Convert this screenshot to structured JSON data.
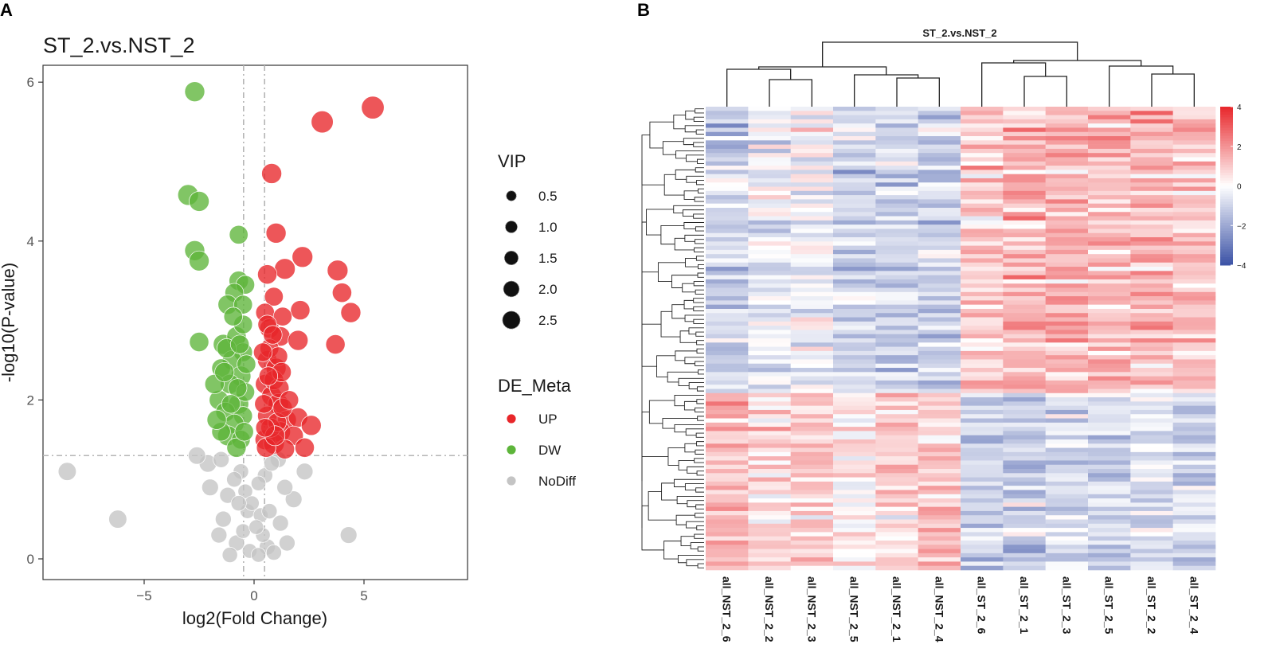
{
  "panels": {
    "a": "A",
    "b": "B"
  },
  "chart_data": [
    {
      "type": "scatter",
      "title": "ST_2.vs.NST_2",
      "xlabel": "log2(Fold Change)",
      "ylabel": "-log10(P-value)",
      "xlim": [
        -10,
        10
      ],
      "ylim": [
        0,
        6.1
      ],
      "xticks": [
        -5,
        0,
        5
      ],
      "xtick_labels": [
        "-5",
        "0",
        "5"
      ],
      "yticks": [
        0,
        2,
        4,
        6
      ],
      "ytick_labels": [
        "0",
        "2",
        "4",
        "6"
      ],
      "grid": false,
      "thresholds": {
        "x": [
          -0.26,
          0.26
        ],
        "y": 1.3
      },
      "legend_size": {
        "title": "VIP",
        "entries": [
          {
            "label": "0.5",
            "value": 0.5
          },
          {
            "label": "1.0",
            "value": 1.0
          },
          {
            "label": "1.5",
            "value": 1.5
          },
          {
            "label": "2.0",
            "value": 2.0
          },
          {
            "label": "2.5",
            "value": 2.5
          }
        ]
      },
      "legend_color": {
        "title": "DE_Meta",
        "entries": [
          {
            "label": "UP",
            "color": "#e8262a"
          },
          {
            "label": "DW",
            "color": "#5db53a"
          },
          {
            "label": "NoDiff",
            "color": "#c4c4c4"
          }
        ]
      },
      "series": [
        {
          "name": "UP",
          "color": "#e8262a",
          "points": [
            [
              5.4,
              5.68,
              2.2
            ],
            [
              3.1,
              5.5,
              2.1
            ],
            [
              0.8,
              4.85,
              1.8
            ],
            [
              1.0,
              4.1,
              1.8
            ],
            [
              2.2,
              3.8,
              1.9
            ],
            [
              3.8,
              3.63,
              1.9
            ],
            [
              1.4,
              3.65,
              1.9
            ],
            [
              0.6,
              3.58,
              1.7
            ],
            [
              0.9,
              3.3,
              1.6
            ],
            [
              4.0,
              3.35,
              1.7
            ],
            [
              4.4,
              3.1,
              1.8
            ],
            [
              2.1,
              3.13,
              1.7
            ],
            [
              3.7,
              2.7,
              1.7
            ],
            [
              0.5,
              3.1,
              1.6
            ],
            [
              0.7,
              2.9,
              1.7
            ],
            [
              1.2,
              2.8,
              1.7
            ],
            [
              2.0,
              2.75,
              1.8
            ],
            [
              1.3,
              3.05,
              1.6
            ],
            [
              0.6,
              2.5,
              1.7
            ],
            [
              1.0,
              2.4,
              1.8
            ],
            [
              0.5,
              2.2,
              1.7
            ],
            [
              0.8,
              2.05,
              1.8
            ],
            [
              1.1,
              1.95,
              1.9
            ],
            [
              0.6,
              1.8,
              1.7
            ],
            [
              1.5,
              1.75,
              1.6
            ],
            [
              2.0,
              1.78,
              1.7
            ],
            [
              2.6,
              1.68,
              1.8
            ],
            [
              1.2,
              1.6,
              1.8
            ],
            [
              1.8,
              1.55,
              1.7
            ],
            [
              0.5,
              1.5,
              1.8
            ],
            [
              0.9,
              1.45,
              1.9
            ],
            [
              2.3,
              1.4,
              1.7
            ],
            [
              1.4,
              1.38,
              1.7
            ],
            [
              0.7,
              2.65,
              1.6
            ],
            [
              0.9,
              2.25,
              1.7
            ],
            [
              1.1,
              2.55,
              1.6
            ],
            [
              0.45,
              1.95,
              1.6
            ],
            [
              0.75,
              1.65,
              1.7
            ],
            [
              1.05,
              1.72,
              1.6
            ],
            [
              0.6,
              2.95,
              1.6
            ],
            [
              1.15,
              2.15,
              1.7
            ],
            [
              0.55,
              1.4,
              1.7
            ],
            [
              0.85,
              2.82,
              1.6
            ],
            [
              1.3,
              1.9,
              1.7
            ],
            [
              0.4,
              2.6,
              1.6
            ],
            [
              0.95,
              1.55,
              1.8
            ],
            [
              1.25,
              2.35,
              1.7
            ],
            [
              0.65,
              2.3,
              1.6
            ],
            [
              1.6,
              2.0,
              1.6
            ],
            [
              0.5,
              1.65,
              1.6
            ]
          ]
        },
        {
          "name": "DW",
          "color": "#5db53a",
          "points": [
            [
              -2.7,
              5.88,
              1.8
            ],
            [
              -3.0,
              4.58,
              1.9
            ],
            [
              -2.5,
              4.5,
              1.8
            ],
            [
              -2.7,
              3.88,
              1.8
            ],
            [
              -2.5,
              3.75,
              1.8
            ],
            [
              -0.7,
              4.08,
              1.6
            ],
            [
              -0.7,
              3.5,
              1.7
            ],
            [
              -0.4,
              3.45,
              1.6
            ],
            [
              -0.9,
              3.35,
              1.6
            ],
            [
              -1.2,
              3.2,
              1.7
            ],
            [
              -0.5,
              3.2,
              1.6
            ],
            [
              -2.5,
              2.73,
              1.7
            ],
            [
              -1.4,
              2.7,
              1.8
            ],
            [
              -0.8,
              2.8,
              1.7
            ],
            [
              -0.5,
              2.6,
              1.6
            ],
            [
              -1.0,
              2.5,
              1.7
            ],
            [
              -1.5,
              2.4,
              1.6
            ],
            [
              -0.6,
              2.3,
              1.8
            ],
            [
              -1.1,
              2.2,
              1.7
            ],
            [
              -1.6,
              2.0,
              1.7
            ],
            [
              -0.7,
              1.95,
              1.8
            ],
            [
              -1.3,
              1.85,
              1.7
            ],
            [
              -0.5,
              1.8,
              1.6
            ],
            [
              -0.9,
              1.7,
              1.7
            ],
            [
              -1.2,
              1.55,
              1.8
            ],
            [
              -0.6,
              1.5,
              1.6
            ],
            [
              -0.8,
              1.4,
              1.7
            ],
            [
              -1.5,
              1.6,
              1.6
            ],
            [
              -0.4,
              2.1,
              1.6
            ],
            [
              -1.8,
              2.2,
              1.7
            ],
            [
              -0.5,
              2.95,
              1.6
            ],
            [
              -0.95,
              3.05,
              1.6
            ],
            [
              -0.35,
              2.45,
              1.6
            ],
            [
              -1.25,
              2.65,
              1.7
            ],
            [
              -0.75,
              2.15,
              1.6
            ],
            [
              -1.05,
              1.95,
              1.6
            ],
            [
              -0.45,
              1.6,
              1.6
            ],
            [
              -1.7,
              1.75,
              1.7
            ],
            [
              -0.65,
              2.7,
              1.6
            ],
            [
              -1.35,
              2.35,
              1.7
            ]
          ]
        },
        {
          "name": "NoDiff",
          "color": "#c4c4c4",
          "points": [
            [
              -8.5,
              1.1,
              1.5
            ],
            [
              -6.2,
              0.5,
              1.5
            ],
            [
              4.3,
              0.3,
              1.3
            ],
            [
              -2.1,
              1.2,
              1.4
            ],
            [
              2.3,
              1.1,
              1.3
            ],
            [
              -2.0,
              0.9,
              1.3
            ],
            [
              1.8,
              0.75,
              1.3
            ],
            [
              -1.4,
              0.5,
              1.2
            ],
            [
              1.2,
              0.45,
              1.2
            ],
            [
              -0.8,
              0.2,
              1.2
            ],
            [
              0.6,
              0.15,
              1.2
            ],
            [
              -1.1,
              0.05,
              1.1
            ],
            [
              0.9,
              0.08,
              1.1
            ],
            [
              -1.2,
              0.8,
              1.2
            ],
            [
              1.4,
              0.9,
              1.2
            ],
            [
              -0.6,
              1.1,
              1.1
            ],
            [
              0.5,
              1.05,
              1.1
            ],
            [
              -0.3,
              0.6,
              1.0
            ],
            [
              0.3,
              0.55,
              1.0
            ],
            [
              -0.5,
              0.35,
              1.0
            ],
            [
              0.4,
              0.3,
              1.0
            ],
            [
              -0.2,
              0.1,
              1.0
            ],
            [
              0.2,
              0.05,
              1.0
            ],
            [
              1.1,
              1.25,
              1.2
            ],
            [
              -1.5,
              1.25,
              1.2
            ],
            [
              -0.9,
              1.0,
              1.1
            ],
            [
              0.8,
              1.2,
              1.1
            ],
            [
              -0.4,
              0.85,
              1.0
            ],
            [
              0.2,
              0.95,
              1.0
            ],
            [
              -1.6,
              0.3,
              1.2
            ],
            [
              1.5,
              0.2,
              1.2
            ],
            [
              -2.6,
              1.3,
              1.4
            ],
            [
              0.1,
              0.4,
              1.0
            ],
            [
              -0.1,
              0.7,
              1.0
            ],
            [
              0.7,
              0.6,
              1.1
            ],
            [
              -0.7,
              0.7,
              1.1
            ]
          ]
        }
      ]
    },
    {
      "type": "heatmap",
      "title": "ST_2.vs.NST_2",
      "columns": [
        "all_NST_2_6",
        "all_NST_2_2",
        "all_NST_2_3",
        "all_NST_2_5",
        "all_NST_2_1",
        "all_NST_2_4",
        "all_ST_2_6",
        "all_ST_2_1",
        "all_ST_2_3",
        "all_ST_2_5",
        "all_ST_2_2",
        "all_ST_2_4"
      ],
      "color_scale": {
        "min": -4,
        "max": 4,
        "low": "#3b52a6",
        "mid": "#ffffff",
        "high": "#e8262a"
      },
      "colorbar_ticks": [
        4,
        2,
        0,
        -2,
        -4
      ],
      "colorbar_labels": [
        "4",
        "2",
        "0",
        "−2",
        "−4"
      ],
      "row_clusters": [
        {
          "rows": 68,
          "means": [
            -1.2,
            -0.5,
            -0.3,
            -1.2,
            -1.1,
            -1.3,
            1.1,
            1.6,
            1.6,
            1.4,
            1.5,
            1.3
          ]
        },
        {
          "rows": 42,
          "means": [
            1.4,
            0.7,
            1.1,
            0.4,
            0.7,
            1.1,
            -1.0,
            -1.3,
            -0.9,
            -1.1,
            -0.9,
            -1.3
          ]
        }
      ],
      "row_count": 110
    }
  ]
}
